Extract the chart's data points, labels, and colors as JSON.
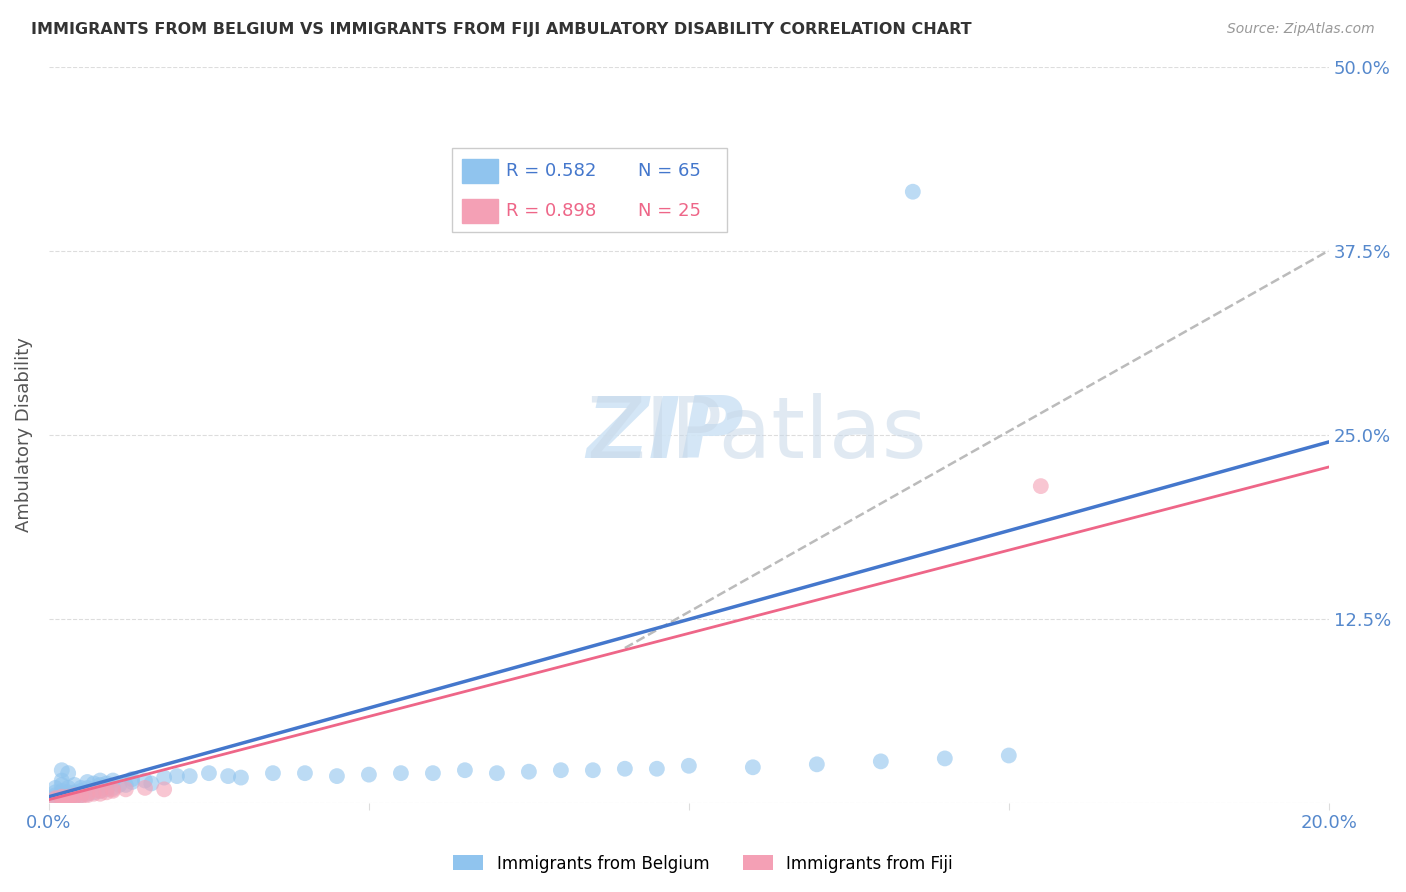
{
  "title": "IMMIGRANTS FROM BELGIUM VS IMMIGRANTS FROM FIJI AMBULATORY DISABILITY CORRELATION CHART",
  "source": "Source: ZipAtlas.com",
  "ylabel": "Ambulatory Disability",
  "xlim": [
    0.0,
    0.2
  ],
  "ylim": [
    0.0,
    0.5
  ],
  "xtick_positions": [
    0.0,
    0.05,
    0.1,
    0.15,
    0.2
  ],
  "xtick_labels": [
    "0.0%",
    "",
    "",
    "",
    "20.0%"
  ],
  "ytick_positions": [
    0.0,
    0.125,
    0.25,
    0.375,
    0.5
  ],
  "ytick_labels": [
    "",
    "12.5%",
    "25.0%",
    "37.5%",
    "50.0%"
  ],
  "belgium_color": "#90C4EE",
  "fiji_color": "#F4A0B5",
  "belgium_line_color": "#4477CC",
  "fiji_line_color": "#EE6688",
  "dashed_color": "#BBBBBB",
  "tick_label_color": "#5588CC",
  "grid_color": "#DDDDDD",
  "title_color": "#333333",
  "source_color": "#999999",
  "ylabel_color": "#555555",
  "watermark_zip_color": "#D0E4F5",
  "watermark_atlas_color": "#C8D8E8",
  "legend_border_color": "#CCCCCC",
  "belgium_line": [
    0.0,
    0.004,
    0.2,
    0.245
  ],
  "fiji_line": [
    0.0,
    0.002,
    0.2,
    0.228
  ],
  "dashed_line_start": 0.09,
  "dashed_line": [
    0.09,
    0.105,
    0.2,
    0.375
  ],
  "belgium_scatter_x": [
    0.001,
    0.001,
    0.001,
    0.001,
    0.002,
    0.002,
    0.002,
    0.002,
    0.002,
    0.003,
    0.003,
    0.003,
    0.003,
    0.003,
    0.004,
    0.004,
    0.004,
    0.005,
    0.005,
    0.005,
    0.006,
    0.006,
    0.006,
    0.007,
    0.007,
    0.008,
    0.008,
    0.008,
    0.009,
    0.009,
    0.01,
    0.01,
    0.011,
    0.012,
    0.013,
    0.013,
    0.015,
    0.016,
    0.018,
    0.02,
    0.022,
    0.025,
    0.028,
    0.03,
    0.035,
    0.04,
    0.045,
    0.05,
    0.055,
    0.06,
    0.065,
    0.07,
    0.075,
    0.08,
    0.085,
    0.09,
    0.095,
    0.1,
    0.11,
    0.12,
    0.13,
    0.14,
    0.15,
    0.002,
    0.135
  ],
  "belgium_scatter_y": [
    0.003,
    0.005,
    0.007,
    0.01,
    0.003,
    0.005,
    0.008,
    0.012,
    0.015,
    0.003,
    0.005,
    0.007,
    0.01,
    0.02,
    0.004,
    0.007,
    0.012,
    0.005,
    0.008,
    0.01,
    0.006,
    0.01,
    0.014,
    0.007,
    0.013,
    0.008,
    0.012,
    0.015,
    0.009,
    0.013,
    0.01,
    0.015,
    0.012,
    0.012,
    0.014,
    0.016,
    0.015,
    0.013,
    0.017,
    0.018,
    0.018,
    0.02,
    0.018,
    0.017,
    0.02,
    0.02,
    0.018,
    0.019,
    0.02,
    0.02,
    0.022,
    0.02,
    0.021,
    0.022,
    0.022,
    0.023,
    0.023,
    0.025,
    0.024,
    0.026,
    0.028,
    0.03,
    0.032,
    0.022,
    0.415
  ],
  "fiji_scatter_x": [
    0.001,
    0.001,
    0.002,
    0.002,
    0.002,
    0.003,
    0.003,
    0.003,
    0.004,
    0.004,
    0.005,
    0.005,
    0.006,
    0.006,
    0.007,
    0.008,
    0.008,
    0.009,
    0.01,
    0.01,
    0.012,
    0.015,
    0.018,
    0.155,
    0.003
  ],
  "fiji_scatter_y": [
    0.002,
    0.003,
    0.002,
    0.003,
    0.004,
    0.003,
    0.004,
    0.001,
    0.004,
    0.005,
    0.004,
    0.005,
    0.005,
    0.006,
    0.006,
    0.006,
    0.008,
    0.007,
    0.008,
    0.009,
    0.009,
    0.01,
    0.009,
    0.215,
    0.001
  ]
}
